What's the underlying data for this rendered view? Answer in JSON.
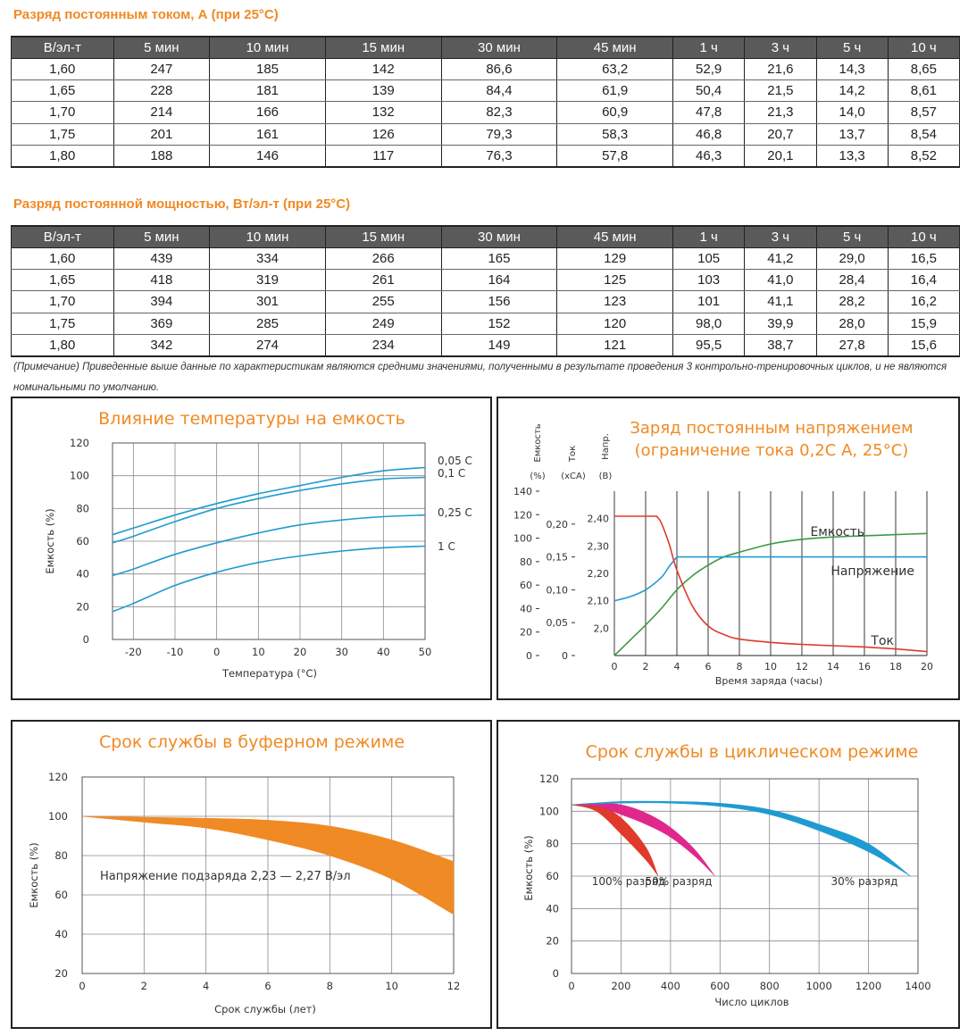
{
  "tables": [
    {
      "title": "Разряд постоянным током, А (при 25°С)",
      "headers": [
        "В/эл-т",
        "5 мин",
        "10 мин",
        "15 мин",
        "30 мин",
        "45 мин",
        "1 ч",
        "3 ч",
        "5 ч",
        "10 ч"
      ],
      "rows": [
        [
          "1,60",
          "247",
          "185",
          "142",
          "86,6",
          "63,2",
          "52,9",
          "21,6",
          "14,3",
          "8,65"
        ],
        [
          "1,65",
          "228",
          "181",
          "139",
          "84,4",
          "61,9",
          "50,4",
          "21,5",
          "14,2",
          "8,61"
        ],
        [
          "1,70",
          "214",
          "166",
          "132",
          "82,3",
          "60,9",
          "47,8",
          "21,3",
          "14,0",
          "8,57"
        ],
        [
          "1,75",
          "201",
          "161",
          "126",
          "79,3",
          "58,3",
          "46,8",
          "20,7",
          "13,7",
          "8,54"
        ],
        [
          "1,80",
          "188",
          "146",
          "117",
          "76,3",
          "57,8",
          "46,3",
          "20,1",
          "13,3",
          "8,52"
        ]
      ]
    },
    {
      "title": "Разряд постоянной мощностью, Вт/эл-т (при 25°С)",
      "headers": [
        "В/эл-т",
        "5 мин",
        "10 мин",
        "15 мин",
        "30 мин",
        "45 мин",
        "1 ч",
        "3 ч",
        "5 ч",
        "10 ч"
      ],
      "rows": [
        [
          "1,60",
          "439",
          "334",
          "266",
          "165",
          "129",
          "105",
          "41,2",
          "29,0",
          "16,5"
        ],
        [
          "1,65",
          "418",
          "319",
          "261",
          "164",
          "125",
          "103",
          "41,0",
          "28,4",
          "16,4"
        ],
        [
          "1,70",
          "394",
          "301",
          "255",
          "156",
          "123",
          "101",
          "41,1",
          "28,2",
          "16,2"
        ],
        [
          "1,75",
          "369",
          "285",
          "249",
          "152",
          "120",
          "98,0",
          "39,9",
          "28,0",
          "15,9"
        ],
        [
          "1,80",
          "342",
          "274",
          "234",
          "149",
          "121",
          "95,5",
          "38,7",
          "27,8",
          "15,6"
        ]
      ]
    }
  ],
  "note": "(Примечание) Приведенные выше данные по характеристикам являются средними значениями, полученными в результате проведения 3 контрольно-тренировочных циклов, и не являются номинальными по умолчанию.",
  "colors": {
    "accent": "#f08a24",
    "blue": "#1f9bd1",
    "red": "#e03a2a",
    "green": "#3a9a45",
    "magenta": "#e0288c",
    "header_bg": "#5a5a5a"
  },
  "chart_data": [
    {
      "type": "line",
      "title": "Влияние температуры на емкость",
      "xlabel": "Температура (°С)",
      "ylabel": "Емкость (%)",
      "xlim": [
        -25,
        50
      ],
      "ylim": [
        0,
        120
      ],
      "xticks": [
        "-20",
        "-10",
        "0",
        "10",
        "20",
        "30",
        "40",
        "50"
      ],
      "yticks": [
        "0",
        "20",
        "40",
        "60",
        "80",
        "100",
        "120"
      ],
      "grid": true,
      "series": [
        {
          "name": "0,05 С",
          "x": [
            -25,
            -20,
            -10,
            0,
            10,
            20,
            30,
            40,
            50
          ],
          "y": [
            64,
            68,
            76,
            83,
            89,
            94,
            99,
            103,
            105
          ]
        },
        {
          "name": "0,1 С",
          "x": [
            -25,
            -20,
            -10,
            0,
            10,
            20,
            30,
            40,
            50
          ],
          "y": [
            59,
            63,
            72,
            80,
            86,
            91,
            95,
            98,
            99
          ]
        },
        {
          "name": "0,25 С",
          "x": [
            -25,
            -20,
            -10,
            0,
            10,
            20,
            30,
            40,
            50
          ],
          "y": [
            39,
            43,
            52,
            59,
            65,
            70,
            73,
            75,
            76
          ]
        },
        {
          "name": "1 С",
          "x": [
            -25,
            -20,
            -10,
            0,
            10,
            20,
            30,
            40,
            50
          ],
          "y": [
            17,
            22,
            33,
            41,
            47,
            51,
            54,
            56,
            57
          ]
        }
      ]
    },
    {
      "type": "line",
      "title": "Заряд постоянным напряжением",
      "subtitle": "(ограничение тока 0,2С А, 25°С)",
      "xlabel": "Время заряда (часы)",
      "axis_headers": [
        {
          "name": "Емкость",
          "unit": "(%)"
        },
        {
          "name": "Ток",
          "unit": "(хСА)"
        },
        {
          "name": "Напр.",
          "unit": "(В)"
        }
      ],
      "xlim": [
        0,
        20
      ],
      "xticks": [
        "0",
        "2",
        "4",
        "6",
        "8",
        "10",
        "12",
        "14",
        "16",
        "18",
        "20"
      ],
      "y_capacity_ticks": [
        "0",
        "20",
        "40",
        "60",
        "80",
        "100",
        "120",
        "140"
      ],
      "y_current_ticks": [
        "0",
        "0,05",
        "0,10",
        "0,15",
        "0,20"
      ],
      "y_voltage_ticks": [
        "2,0",
        "2,10",
        "2,20",
        "2,30",
        "2,40"
      ],
      "grid": true,
      "series": [
        {
          "name": "Емкость",
          "axis": "capacity",
          "x": [
            0,
            1,
            2,
            3,
            4,
            5,
            6,
            7,
            8,
            10,
            12,
            14,
            16,
            18,
            20
          ],
          "y": [
            0,
            13,
            26,
            40,
            56,
            68,
            77,
            84,
            88,
            95,
            99,
            101,
            102,
            103,
            104
          ]
        },
        {
          "name": "Напряжение",
          "axis": "voltage",
          "x": [
            0,
            1,
            2,
            3,
            3.5,
            4,
            20
          ],
          "y": [
            2.1,
            2.115,
            2.14,
            2.185,
            2.225,
            2.26,
            2.26
          ]
        },
        {
          "name": "Ток",
          "axis": "current",
          "x": [
            0,
            2.7,
            3,
            3.5,
            4,
            5,
            6,
            7,
            8,
            10,
            12,
            14,
            16,
            18,
            20
          ],
          "y": [
            0.212,
            0.212,
            0.202,
            0.17,
            0.13,
            0.075,
            0.045,
            0.032,
            0.025,
            0.02,
            0.017,
            0.015,
            0.013,
            0.01,
            0.006
          ]
        }
      ]
    },
    {
      "type": "area",
      "title": "Срок службы в буферном режиме",
      "xlabel": "Срок службы (лет)",
      "ylabel": "Емкость (%)",
      "annotation": "Напряжение подзаряда 2,23 — 2,27 В/эл",
      "xlim": [
        0,
        12
      ],
      "ylim": [
        20,
        120
      ],
      "xticks": [
        "0",
        "2",
        "4",
        "6",
        "8",
        "10",
        "12"
      ],
      "yticks": [
        "20",
        "40",
        "60",
        "80",
        "100",
        "120"
      ],
      "grid": true,
      "band": {
        "x": [
          0,
          2,
          4,
          6,
          8,
          10,
          12
        ],
        "upper": [
          100,
          99.5,
          99,
          98,
          95,
          88,
          77
        ],
        "lower": [
          100,
          97,
          94,
          88,
          80,
          68,
          50
        ]
      }
    },
    {
      "type": "area",
      "title": "Срок службы в циклическом режиме",
      "xlabel": "Число циклов",
      "ylabel": "Емкость (%)",
      "xlim": [
        0,
        1400
      ],
      "ylim": [
        0,
        120
      ],
      "xticks": [
        "0",
        "200",
        "400",
        "600",
        "800",
        "1000",
        "1200",
        "1400"
      ],
      "yticks": [
        "0",
        "20",
        "40",
        "60",
        "80",
        "100",
        "120"
      ],
      "grid": true,
      "bands": [
        {
          "name": "100% разряд",
          "x": [
            0,
            100,
            200,
            300,
            350
          ],
          "upper": [
            104,
            104,
            96,
            78,
            60
          ],
          "lower": [
            104,
            100,
            86,
            70,
            60
          ]
        },
        {
          "name": "50% разряд",
          "x": [
            0,
            100,
            200,
            300,
            400,
            500,
            580
          ],
          "upper": [
            104,
            105,
            104,
            99,
            90,
            76,
            60
          ],
          "lower": [
            104,
            103,
            98,
            92,
            84,
            72,
            60
          ]
        },
        {
          "name": "30% разряд",
          "x": [
            0,
            200,
            400,
            600,
            800,
            1000,
            1200,
            1370
          ],
          "upper": [
            104,
            106,
            106,
            105,
            101,
            92,
            80,
            60
          ],
          "lower": [
            104,
            105,
            105,
            103,
            98,
            88,
            75,
            60
          ]
        }
      ]
    }
  ]
}
